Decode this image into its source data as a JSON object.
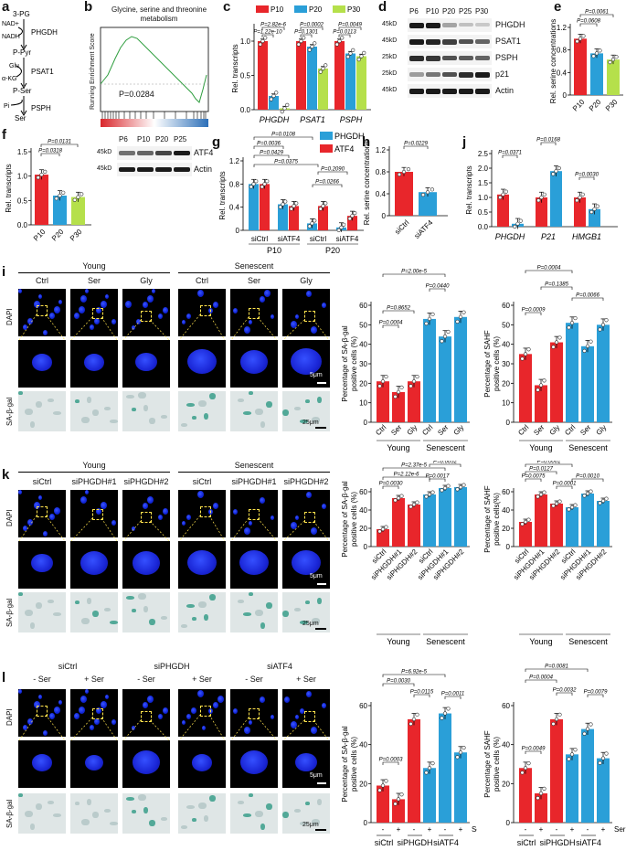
{
  "panels": {
    "a": {
      "label": "a",
      "metabolites": [
        "3-PG",
        "NAD+",
        "NADH",
        "P-Pyr",
        "Glu",
        "α-KG",
        "P-Ser",
        "Pi",
        "Ser"
      ],
      "enzymes": [
        "PHGDH",
        "PSAT1",
        "PSPH"
      ]
    },
    "b": {
      "label": "b",
      "title": "Glycine, serine and threonine metabolism",
      "ylabel": "Running Enrichment Score",
      "pvalue": "P=0.0284"
    },
    "c": {
      "label": "c",
      "ylabel": "Rel. transcripts",
      "legend": [
        "P10",
        "P20",
        "P30"
      ],
      "genes": [
        "PHGDH",
        "PSAT1",
        "PSPH"
      ],
      "pvals": [
        "P=2.82e-6",
        "P=1.22e-10",
        "P=0.0002",
        "P=0.1301",
        "P=0.0049",
        "P=0.0113"
      ]
    },
    "d": {
      "label": "d",
      "lanes": [
        "P6",
        "P10",
        "P20",
        "P25",
        "P30"
      ],
      "proteins": [
        "PHGDH",
        "PSAT1",
        "PSPH",
        "p21",
        "Actin"
      ],
      "markers": [
        "45kD",
        "45kD",
        "25kD",
        "25kD",
        "45kD"
      ]
    },
    "e": {
      "label": "e",
      "ylabel": "Rel. serine concentrations",
      "groups": [
        "P10",
        "P20",
        "P30"
      ],
      "pvals": [
        "P=0.0061",
        "P=0.0608"
      ]
    },
    "f": {
      "label": "f",
      "ylabel": "Rel. transcripts",
      "groups": [
        "P10",
        "P20",
        "P30"
      ],
      "pvals": [
        "P=0.0131",
        "P=0.0318"
      ],
      "lanes": [
        "P6",
        "P10",
        "P20",
        "P25"
      ],
      "proteins": [
        "ATF4",
        "Actin"
      ],
      "markers": [
        "45kD",
        "45kD"
      ]
    },
    "g": {
      "label": "g",
      "ylabel": "Rel. transcripts",
      "legend": [
        "PHGDH",
        "ATF4"
      ],
      "xgroups": [
        "siCtrl",
        "siATF4",
        "siCtrl",
        "siATF4"
      ],
      "passages": [
        "P10",
        "P20"
      ],
      "pvals": [
        "P=0.0108",
        "P=0.0036",
        "P=0.0429",
        "P=0.0375",
        "P=0.2090",
        "P=0.0266"
      ]
    },
    "h": {
      "label": "h",
      "ylabel": "Rel. serine concentrations",
      "groups": [
        "siCtrl",
        "siATF4"
      ],
      "pval": "P=0.0229"
    },
    "j": {
      "label": "j",
      "ylabel": "Rel. transcripts",
      "genes": [
        "PHGDH",
        "P21",
        "HMGB1"
      ],
      "pvals": [
        "P=0.0371",
        "P=0.0168",
        "P=0.0030"
      ]
    },
    "i": {
      "label": "i",
      "groups": [
        "Young",
        "Senescent"
      ],
      "conditions": [
        "Ctrl",
        "Ser",
        "Gly",
        "Ctrl",
        "Ser",
        "Gly"
      ],
      "rows": [
        "DAPI",
        "SA-β-gal"
      ],
      "scales": [
        "5μm",
        "25μm"
      ],
      "chart1": {
        "ylabel": "Percentage of SA-β-gal positive cells (%)",
        "pvals": [
          "P=2.00e-5",
          "P=0.0440",
          "P=0.8652",
          "P=0.0004"
        ]
      },
      "chart2": {
        "ylabel": "Percentage of SAHF positive cells (%)",
        "pvals": [
          "P=0.0004",
          "P=0.1385",
          "P=0.0066",
          "P=0.0009"
        ]
      }
    },
    "k": {
      "label": "k",
      "groups": [
        "Young",
        "Senescent"
      ],
      "conditions": [
        "siCtrl",
        "siPHGDH#1",
        "siPHGDH#2",
        "siCtrl",
        "siPHGDH#1",
        "siPHGDH#2"
      ],
      "rows": [
        "DAPI",
        "SA-β-gal"
      ],
      "scales": [
        "5μm",
        "25μm"
      ],
      "chart1": {
        "ylabel": "Percentage of SA-β-gal positive cells (%)",
        "pvals": [
          "P=2.12e-6",
          "P=2.37e-5",
          "P=0.0030",
          "P=0.0017",
          "P=0.0052"
        ]
      },
      "chart2": {
        "ylabel": "Percentage of SAHF positive cells(%)",
        "pvals": [
          "P=0.0001",
          "P=0.0127",
          "P=0.0075",
          "P=0.0001",
          "P=0.0010"
        ]
      }
    },
    "l": {
      "label": "l",
      "groups": [
        "siCtrl",
        "siPHGDH",
        "siATF4"
      ],
      "conditions": [
        "- Ser",
        "+ Ser",
        "- Ser",
        "+ Ser",
        "- Ser",
        "+ Ser"
      ],
      "rows": [
        "DAPI",
        "SA-β-gal"
      ],
      "scales": [
        "5μm",
        "25μm"
      ],
      "chart1": {
        "ylabel": "Percentage of SA-β-gal positive cells (%)",
        "pvals": [
          "P=6.92e-5",
          "P=0.0030",
          "P=0.0115",
          "P=0.0011",
          "P=0.0003"
        ],
        "serlabel": "Ser"
      },
      "chart2": {
        "ylabel": "Percentage of SAHF positive cells (%)",
        "pvals": [
          "P=0.0081",
          "P=0.0004",
          "P=0.0032",
          "P=0.0079",
          "P=0.0049"
        ],
        "serlabel": "Ser"
      }
    }
  },
  "colors": {
    "red": "#e8262b",
    "blue": "#2a9fd8",
    "green": "#b5e04b"
  },
  "chart_data": [
    {
      "id": "c",
      "type": "bar",
      "categories": [
        "PHGDH",
        "PSAT1",
        "PSPH"
      ],
      "series": [
        {
          "name": "P10",
          "values": [
            1.0,
            1.0,
            1.0
          ]
        },
        {
          "name": "P20",
          "values": [
            0.2,
            0.92,
            0.82
          ]
        },
        {
          "name": "P30",
          "values": [
            0.02,
            0.6,
            0.78
          ]
        }
      ],
      "ylim": [
        0,
        1.2
      ],
      "yticks": [
        0,
        0.5,
        1.0
      ]
    },
    {
      "id": "e",
      "type": "bar",
      "categories": [
        "P10",
        "P20",
        "P30"
      ],
      "values": [
        1.0,
        0.74,
        0.63
      ],
      "ylim": [
        0,
        1.2
      ],
      "yticks": [
        0,
        0.4,
        0.8,
        1.2
      ]
    },
    {
      "id": "f",
      "type": "bar",
      "categories": [
        "P10",
        "P20",
        "P30"
      ],
      "values": [
        1.03,
        0.6,
        0.57
      ],
      "ylim": [
        0,
        1.5
      ],
      "yticks": [
        0,
        0.5,
        1.0,
        1.5
      ]
    },
    {
      "id": "g",
      "type": "bar",
      "categories": [
        "siCtrl P10",
        "siATF4 P10",
        "siCtrl P20",
        "siATF4 P20"
      ],
      "series": [
        {
          "name": "PHGDH",
          "values": [
            0.8,
            0.45,
            0.12,
            0.05
          ]
        },
        {
          "name": "ATF4",
          "values": [
            0.8,
            0.42,
            0.42,
            0.25
          ]
        }
      ],
      "ylim": [
        0,
        1.2
      ],
      "yticks": [
        0,
        0.4,
        0.8,
        1.2
      ]
    },
    {
      "id": "h",
      "type": "bar",
      "categories": [
        "siCtrl",
        "siATF4"
      ],
      "values": [
        0.8,
        0.43
      ],
      "ylim": [
        0,
        1.2
      ],
      "yticks": [
        0,
        0.4,
        0.8,
        1.2
      ]
    },
    {
      "id": "j",
      "type": "bar",
      "categories": [
        "PHGDH",
        "PHGDH",
        "P21",
        "P21",
        "HMGB1",
        "HMGB1"
      ],
      "values": [
        1.1,
        0.1,
        1.0,
        1.9,
        1.0,
        0.6
      ],
      "ylim": [
        0,
        2.5
      ],
      "yticks": [
        0,
        0.5,
        1.0,
        1.5,
        2.0,
        2.5
      ]
    },
    {
      "id": "i1",
      "type": "bar",
      "categories": [
        "Ctrl",
        "Ser",
        "Gly",
        "Ctrl",
        "Ser",
        "Gly"
      ],
      "values": [
        21,
        15.5,
        21,
        53,
        44,
        54
      ],
      "ylim": [
        0,
        60
      ],
      "yticks": [
        0,
        10,
        20,
        30,
        40,
        50,
        60
      ]
    },
    {
      "id": "i2",
      "type": "bar",
      "categories": [
        "Ctrl",
        "Ser",
        "Gly",
        "Ctrl",
        "Ser",
        "Gly"
      ],
      "values": [
        35,
        19,
        41,
        51,
        39,
        50
      ],
      "ylim": [
        0,
        60
      ],
      "yticks": [
        0,
        10,
        20,
        30,
        40,
        50,
        60
      ]
    },
    {
      "id": "k1",
      "type": "bar",
      "categories": [
        "siCtrl",
        "siPHGDH#1",
        "siPHGDH#2",
        "siCtrl",
        "siPHGDH#1",
        "siPHGDH#2"
      ],
      "values": [
        19,
        53,
        46,
        57,
        64,
        65
      ],
      "ylim": [
        0,
        60
      ],
      "yticks": [
        0,
        20,
        40,
        60
      ]
    },
    {
      "id": "k2",
      "type": "bar",
      "categories": [
        "siCtrl",
        "siPHGDH#1",
        "siPHGDH#2",
        "siCtrl",
        "siPHGDH#1",
        "siPHGDH#2"
      ],
      "values": [
        27,
        57,
        47,
        43,
        58,
        50
      ],
      "ylim": [
        0,
        60
      ],
      "yticks": [
        0,
        20,
        40,
        60
      ]
    },
    {
      "id": "l1",
      "type": "bar",
      "categories": [
        "siCtrl -",
        "siCtrl +",
        "siPHGDH -",
        "siPHGDH +",
        "siATF4 -",
        "siATF4 +"
      ],
      "values": [
        19,
        12,
        53,
        28,
        56,
        36
      ],
      "ylim": [
        0,
        60
      ],
      "yticks": [
        0,
        20,
        40,
        60
      ]
    },
    {
      "id": "l2",
      "type": "bar",
      "categories": [
        "siCtrl -",
        "siCtrl +",
        "siPHGDH -",
        "siPHGDH +",
        "siATF4 -",
        "siATF4 +"
      ],
      "values": [
        28,
        15,
        53,
        35,
        48,
        33
      ],
      "ylim": [
        0,
        60
      ],
      "yticks": [
        0,
        20,
        40,
        60
      ]
    }
  ]
}
